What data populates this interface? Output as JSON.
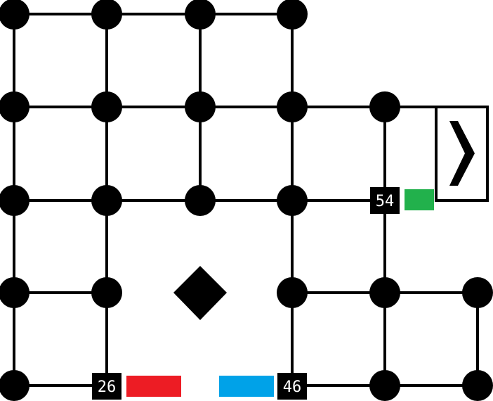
{
  "game": {
    "colors": {
      "background": "#ffffff",
      "ink": "#000000",
      "red": "#ed1c24",
      "blue": "#00a2e8",
      "green": "#22b14c",
      "label_text": "#ffffff"
    },
    "labeled_nodes": [
      {
        "id": "node-54",
        "label": "54"
      },
      {
        "id": "node-26",
        "label": "26"
      },
      {
        "id": "node-46",
        "label": "46"
      }
    ],
    "player_marker": {
      "icon": "diamond-icon"
    },
    "exit_door": {
      "icon": "chevron-right-icon"
    }
  }
}
